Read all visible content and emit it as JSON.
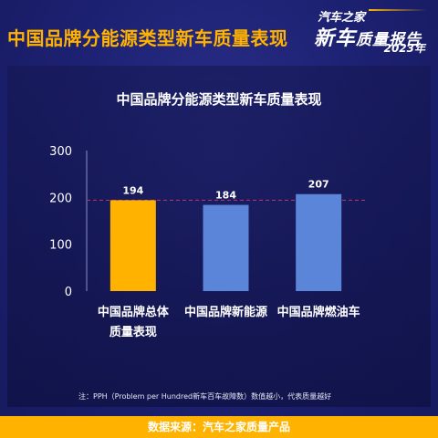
{
  "header": {
    "title": "中国品牌分能源类型新车质量表现"
  },
  "logo": {
    "top_text": "汽车之家",
    "main_text": "新车",
    "sub_text": "质量报告",
    "year": "2023年"
  },
  "note": "注：PPH（Problem per Hundred新车百车故障数）数值越小，代表质量越好",
  "footer": {
    "source": "数据来源：汽车之家质量产品"
  },
  "colors": {
    "background": "#1b1f6b",
    "accent": "#ffb300",
    "bar_highlight": "#ffb300",
    "bar_default": "#5b85d9",
    "reference_line": "#c0356b"
  },
  "chart_data": {
    "type": "bar",
    "title": "中国品牌分能源类型新车质量表现",
    "categories": [
      [
        "中国品牌总体",
        "质量表现"
      ],
      [
        "中国品牌新能源"
      ],
      [
        "中国品牌燃油车"
      ]
    ],
    "values": [
      194,
      184,
      207
    ],
    "data_labels": [
      "194",
      "184",
      "207"
    ],
    "ylim": [
      0,
      300
    ],
    "yticks": [
      0,
      100,
      200,
      300
    ],
    "ytick_labels": [
      "0",
      "100",
      "200",
      "300"
    ],
    "reference_line": 194,
    "highlight_index": 0,
    "xlabel": "",
    "ylabel": "",
    "grid": false,
    "legend": "none"
  }
}
